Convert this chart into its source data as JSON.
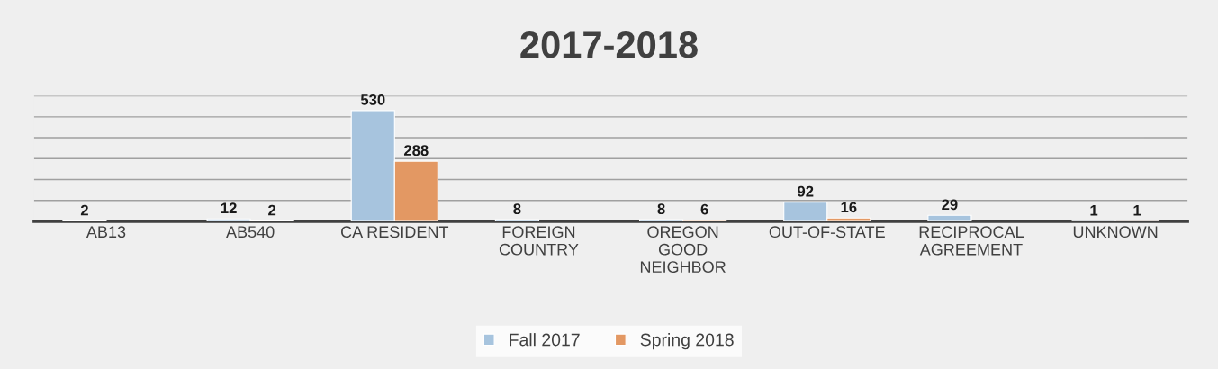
{
  "chart_data": {
    "type": "bar",
    "title": "2017-2018",
    "categories": [
      "AB13",
      "AB540",
      "CA RESIDENT",
      "FOREIGN\nCOUNTRY",
      "OREGON\nGOOD\nNEIGHBOR",
      "OUT-OF-STATE",
      "RECIPROCAL\nAGREEMENT",
      "UNKNOWN"
    ],
    "series": [
      {
        "name": "Fall 2017",
        "color": "#a7c4de",
        "values": [
          2,
          12,
          530,
          8,
          8,
          92,
          29,
          1
        ]
      },
      {
        "name": "Spring 2018",
        "color": "#e39863",
        "values": [
          null,
          2,
          288,
          null,
          6,
          16,
          null,
          1
        ]
      }
    ],
    "ylim": [
      0,
      600
    ],
    "yticks": [
      {
        "value": 0,
        "label": null
      },
      {
        "value": 100,
        "label": null
      },
      {
        "value": 200,
        "label": null
      },
      {
        "value": 300,
        "label": null
      },
      {
        "value": 400,
        "label": null
      },
      {
        "value": 500,
        "label": null
      },
      {
        "value": 600,
        "label": null
      }
    ],
    "tick_labels": "x",
    "grid": "y",
    "data_labels": true,
    "legend": "bottom"
  }
}
